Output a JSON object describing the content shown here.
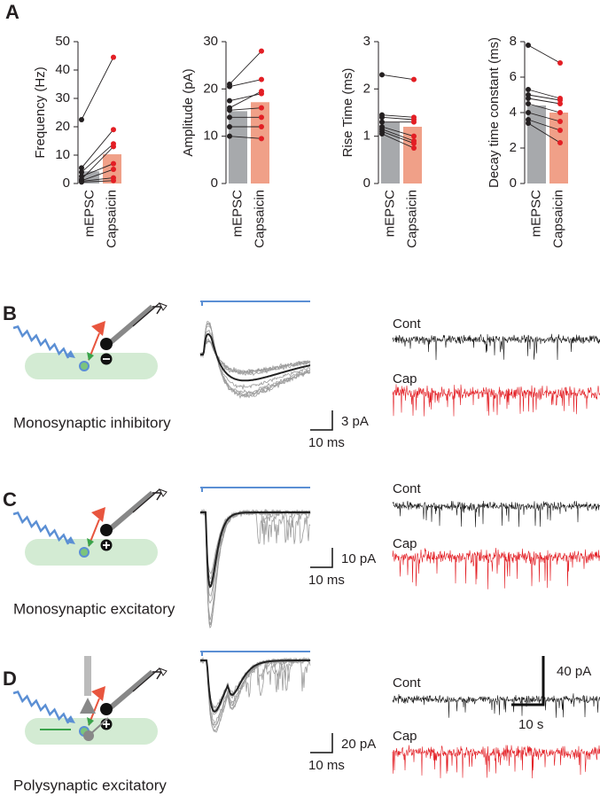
{
  "figure_label": "A",
  "chart_data": [
    {
      "type": "bar",
      "ylabel": "Frequency (Hz)",
      "categories": [
        "mEPSC",
        "Capsaicin"
      ],
      "values": [
        4.3,
        10.3
      ],
      "colors": [
        "#a7a9ac",
        "#f0a088"
      ],
      "points": [
        {
          "color": "#231f20",
          "values": [
            22.5,
            5.5,
            4,
            2.5,
            1.5,
            1,
            0.8,
            0.5
          ]
        },
        {
          "color": "#e31e24",
          "values": [
            44.5,
            19,
            14,
            7,
            13,
            5,
            2,
            1
          ]
        }
      ],
      "ylim": [
        0,
        50
      ],
      "yticks": [
        0,
        10,
        20,
        30,
        40,
        50
      ]
    },
    {
      "type": "bar",
      "ylabel": "Amplitude (pA)",
      "categories": [
        "mEPSC",
        "Capsaicin"
      ],
      "values": [
        15.3,
        17.2
      ],
      "colors": [
        "#a7a9ac",
        "#f0a088"
      ],
      "points": [
        {
          "color": "#231f20",
          "values": [
            21,
            20.5,
            17.5,
            16,
            15.5,
            14,
            12,
            10
          ]
        },
        {
          "color": "#e31e24",
          "values": [
            28,
            22,
            19,
            19.5,
            16,
            14,
            12,
            9.5
          ]
        }
      ],
      "ylim": [
        0,
        30
      ],
      "yticks": [
        0,
        10,
        20,
        30
      ]
    },
    {
      "type": "bar",
      "ylabel": "Rise Time (ms)",
      "categories": [
        "mEPSC",
        "Capsaicin"
      ],
      "values": [
        1.3,
        1.2
      ],
      "colors": [
        "#a7a9ac",
        "#f0a088"
      ],
      "points": [
        {
          "color": "#231f20",
          "values": [
            2.3,
            1.45,
            1.4,
            1.3,
            1.2,
            1.15,
            1.1,
            1.05
          ]
        },
        {
          "color": "#e31e24",
          "values": [
            2.2,
            1.4,
            1.35,
            1.3,
            1.0,
            0.9,
            0.85,
            0.75
          ]
        }
      ],
      "ylim": [
        0,
        3
      ],
      "yticks": [
        0,
        1,
        2,
        3
      ]
    },
    {
      "type": "bar",
      "ylabel": "Decay time constant (ms)",
      "categories": [
        "mEPSC",
        "Capsaicin"
      ],
      "values": [
        4.4,
        4.0
      ],
      "colors": [
        "#a7a9ac",
        "#f0a088"
      ],
      "points": [
        {
          "color": "#231f20",
          "values": [
            7.8,
            5.3,
            5.0,
            4.8,
            4.5,
            4.0,
            3.6,
            3.4
          ]
        },
        {
          "color": "#e31e24",
          "values": [
            6.8,
            4.8,
            4.7,
            4.5,
            4.0,
            3.5,
            3.0,
            2.3
          ]
        }
      ],
      "ylim": [
        0,
        8
      ],
      "yticks": [
        0,
        2,
        4,
        6,
        8
      ]
    }
  ],
  "panels": [
    {
      "label": "B",
      "caption": "Monosynaptic inhibitory",
      "scale_y": "3 pA",
      "scale_x": "10 ms",
      "trace_labels": [
        "Cont",
        "Cap"
      ],
      "trace_colors": [
        "#1a1a1a",
        "#e31e24"
      ]
    },
    {
      "label": "C",
      "caption": "Monosynaptic excitatory",
      "scale_y": "10 pA",
      "scale_x": "10 ms",
      "trace_labels": [
        "Cont",
        "Cap"
      ],
      "trace_colors": [
        "#1a1a1a",
        "#e31e24"
      ]
    },
    {
      "label": "D",
      "caption": "Polysynaptic excitatory",
      "scale_y": "20 pA",
      "scale_x": "10 ms",
      "trace_labels": [
        "Cont",
        "Cap"
      ],
      "trace_colors": [
        "#1a1a1a",
        "#e31e24"
      ]
    }
  ],
  "summary_scale": {
    "y": "40 pA",
    "x": "10 s"
  }
}
